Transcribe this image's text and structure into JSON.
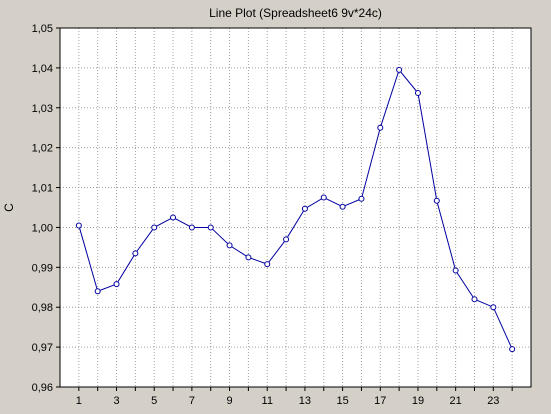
{
  "chart_data": {
    "type": "line",
    "title": "Line Plot (Spreadsheet6 9v*24c)",
    "xlabel": "",
    "ylabel": "C",
    "x": [
      1,
      2,
      3,
      4,
      5,
      6,
      7,
      8,
      9,
      10,
      11,
      12,
      13,
      14,
      15,
      16,
      17,
      18,
      19,
      20,
      21,
      22,
      23,
      24
    ],
    "x_tick_labels": [
      "1",
      "3",
      "5",
      "7",
      "9",
      "11",
      "13",
      "15",
      "17",
      "19",
      "21",
      "23"
    ],
    "xlim": [
      0,
      25
    ],
    "ylim": [
      0.96,
      1.05
    ],
    "y_tick_labels": [
      "0,96",
      "0,97",
      "0,98",
      "0,99",
      "1,00",
      "1,01",
      "1,02",
      "1,03",
      "1,04",
      "1,05"
    ],
    "series": [
      {
        "values": [
          1.0005,
          0.984,
          0.9858,
          0.9935,
          1.0,
          1.0025,
          1.0,
          1.0,
          0.9955,
          0.9925,
          0.9908,
          0.997,
          1.0047,
          1.0075,
          1.0052,
          1.0072,
          1.025,
          1.0395,
          1.0337,
          1.0067,
          0.9892,
          0.982,
          0.98,
          0.9695
        ],
        "color": "#0000a0",
        "marker": "circle"
      }
    ],
    "grid": true,
    "colors": {
      "background": "#d4d0c8",
      "plot_area": "#ffffff",
      "grid": "#a0a0a0",
      "line": "#0000a0"
    }
  }
}
